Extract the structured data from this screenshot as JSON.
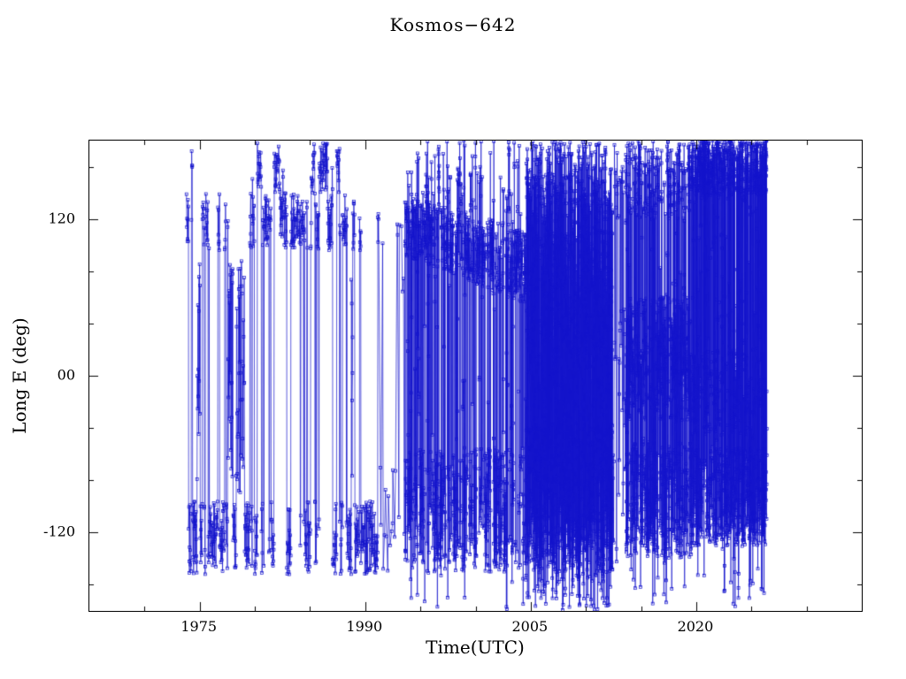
{
  "chart_data": {
    "type": "scatter",
    "title": "Kosmos−642",
    "xlabel": "Time(UTC)",
    "ylabel": "Long E (deg)",
    "xlim": [
      1965,
      2035
    ],
    "ylim": [
      -180,
      180
    ],
    "grid": false,
    "legend": null,
    "marker": "small-open-square",
    "color": "#1414cc",
    "axis_color": "#000000",
    "background": "#ffffff",
    "seed": 7,
    "x_ticks": [
      {
        "v": 1975,
        "label": "1975"
      },
      {
        "v": 1990,
        "label": "1990"
      },
      {
        "v": 2005,
        "label": "2005"
      },
      {
        "v": 2020,
        "label": "2020"
      }
    ],
    "x_minor": [
      1970,
      1980,
      1985,
      1995,
      2000,
      2010,
      2015,
      2025,
      2030
    ],
    "y_ticks": [
      {
        "v": -120,
        "label": "-120"
      },
      {
        "v": 0,
        "label": "00"
      },
      {
        "v": 120,
        "label": "120"
      }
    ],
    "y_minor": [
      -160,
      -80,
      -40,
      40,
      80,
      160
    ],
    "series_note": "Satellite East-longitude history 1974-2026; points librate in bands near +120 and -120 deg, with near-vertical connector lines where longitude wraps; coverage becomes nearly solid 2005-2012 and a top band near 140..180 deg dominates 2020-2026.",
    "segments": [
      {
        "t0": 1973.8,
        "t1": 1991.2,
        "rate": 46,
        "stick": 0.84,
        "bands": [
          {
            "w": 0.46,
            "from": [
              96,
              140
            ]
          },
          {
            "w": 0.42,
            "from": [
              -152,
              -96
            ]
          },
          {
            "w": 0.09,
            "from": [
              140,
              178
            ]
          },
          {
            "w": 0.03,
            "from": [
              -90,
              90
            ]
          }
        ]
      },
      {
        "t0": 1991.2,
        "t1": 1993.6,
        "rate": 10,
        "stick": 0.3,
        "bands": [
          {
            "w": 0.4,
            "from": [
              60,
              130
            ]
          },
          {
            "w": 0.5,
            "from": [
              -150,
              -60
            ]
          },
          {
            "w": 0.1,
            "from": [
              -60,
              60
            ]
          }
        ]
      },
      {
        "t0": 1993.6,
        "t1": 2004.6,
        "rate": 110,
        "stick": 0.62,
        "bands": [
          {
            "w": 0.38,
            "from": [
              92,
              138
            ],
            "to": [
              55,
              112
            ]
          },
          {
            "w": 0.38,
            "from": [
              -150,
              -55
            ]
          },
          {
            "w": 0.12,
            "from": [
              138,
              180
            ],
            "to": [
              112,
              180
            ]
          },
          {
            "w": 0.12,
            "from": [
              -180,
              180
            ]
          }
        ]
      },
      {
        "t0": 2004.6,
        "t1": 2012.4,
        "rate": 230,
        "stick": 0.25,
        "bands": [
          {
            "w": 0.55,
            "from": [
              -180,
              180
            ]
          },
          {
            "w": 0.25,
            "from": [
              -150,
              -40
            ]
          },
          {
            "w": 0.2,
            "from": [
              20,
              180
            ]
          }
        ]
      },
      {
        "t0": 2012.4,
        "t1": 2013.6,
        "rate": 40,
        "stick": 0.3,
        "bands": [
          {
            "w": 0.4,
            "from": [
              -150,
              -60
            ]
          },
          {
            "w": 0.3,
            "from": [
              120,
              180
            ]
          },
          {
            "w": 0.3,
            "from": [
              -40,
              60
            ]
          }
        ]
      },
      {
        "t0": 2013.6,
        "t1": 2019.6,
        "rate": 170,
        "stick": 0.45,
        "bands": [
          {
            "w": 0.33,
            "from": [
              -35,
              60
            ]
          },
          {
            "w": 0.33,
            "from": [
              -140,
              -50
            ]
          },
          {
            "w": 0.17,
            "from": [
              120,
              180
            ]
          },
          {
            "w": 0.17,
            "from": [
              -180,
              180
            ]
          }
        ]
      },
      {
        "t0": 2019.6,
        "t1": 2026.4,
        "rate": 200,
        "stick": 0.5,
        "bands": [
          {
            "w": 0.38,
            "from": [
              138,
              180
            ]
          },
          {
            "w": 0.34,
            "from": [
              -130,
              -55
            ]
          },
          {
            "w": 0.14,
            "from": [
              -45,
              20
            ]
          },
          {
            "w": 0.14,
            "from": [
              -180,
              180
            ]
          }
        ]
      }
    ]
  }
}
